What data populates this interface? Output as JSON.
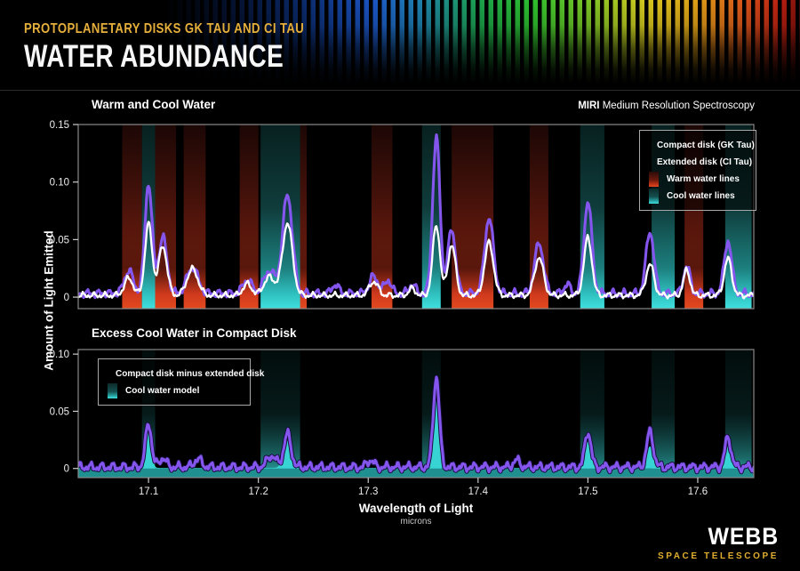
{
  "header": {
    "kicker": "PROTOPLANETARY DISKS GK TAU AND CI TAU",
    "title": "WATER ABUNDANCE"
  },
  "annotation": {
    "instrument": "MIRI",
    "instrument_rest": " Medium Resolution Spectroscopy"
  },
  "axes": {
    "y_label": "Amount of Light Emitted",
    "x_label": "Wavelength of Light",
    "x_unit": "microns"
  },
  "footer": {
    "logo": "WEBB",
    "logo_sub": "SPACE TELESCOPE"
  },
  "colors": {
    "background": "#000000",
    "accent_gold": "#e5af3c",
    "compact_purple": "#8456ee",
    "extended_white": "#ffffff",
    "warm_red": "#d63b20",
    "cool_teal": "#38d4d4",
    "axis_gray": "#8a8a8a"
  },
  "chart_data": [
    {
      "type": "line",
      "title": "Warm and Cool Water",
      "x_range": [
        17.036,
        17.651
      ],
      "y_range": [
        -0.01,
        0.15
      ],
      "x_ticks": [
        17.1,
        17.2,
        17.3,
        17.4,
        17.5,
        17.6
      ],
      "x_tick_labels": [],
      "y_ticks": [
        0,
        0.05,
        0.1,
        0.15
      ],
      "y_tick_labels": [
        "0",
        "0.05",
        "0.10",
        "0.15"
      ],
      "legend": [
        {
          "label": "Compact disk (GK Tau)",
          "swatch": "line",
          "color": "#8456ee"
        },
        {
          "label": "Extended disk (CI Tau)",
          "swatch": "line",
          "color": "#ffffff"
        },
        {
          "label": "Warm water lines",
          "swatch": "warm-band",
          "color": "#d63b20"
        },
        {
          "label": "Cool water lines",
          "swatch": "cool-band",
          "color": "#38d4d4"
        }
      ],
      "warm_bands": [
        [
          17.076,
          17.094
        ],
        [
          17.106,
          17.125
        ],
        [
          17.132,
          17.152
        ],
        [
          17.183,
          17.2
        ],
        [
          17.237,
          17.244
        ],
        [
          17.303,
          17.322
        ],
        [
          17.376,
          17.414
        ],
        [
          17.447,
          17.464
        ],
        [
          17.588,
          17.605
        ]
      ],
      "cool_bands": [
        [
          17.094,
          17.106
        ],
        [
          17.202,
          17.238
        ],
        [
          17.349,
          17.366
        ],
        [
          17.493,
          17.515
        ],
        [
          17.558,
          17.579
        ],
        [
          17.625,
          17.649
        ]
      ],
      "series": [
        {
          "name": "Compact disk (GK Tau)",
          "color": "#8456ee",
          "draw": "stroke",
          "baseline": 0.003,
          "noise_amp": 0.0022,
          "peaks": [
            [
              17.082,
              0.02,
              0.004
            ],
            [
              17.1,
              0.096,
              0.0033
            ],
            [
              17.113,
              0.049,
              0.0038
            ],
            [
              17.14,
              0.023,
              0.005
            ],
            [
              17.19,
              0.012,
              0.004
            ],
            [
              17.21,
              0.02,
              0.005
            ],
            [
              17.2265,
              0.086,
              0.0045
            ],
            [
              17.27,
              0.008,
              0.003
            ],
            [
              17.305,
              0.015,
              0.004
            ],
            [
              17.318,
              0.012,
              0.003
            ],
            [
              17.34,
              0.008,
              0.003
            ],
            [
              17.362,
              0.136,
              0.0033
            ],
            [
              17.376,
              0.056,
              0.0035
            ],
            [
              17.41,
              0.066,
              0.004
            ],
            [
              17.4555,
              0.044,
              0.004
            ],
            [
              17.481,
              0.008,
              0.003
            ],
            [
              17.5,
              0.08,
              0.0036
            ],
            [
              17.5565,
              0.054,
              0.0036
            ],
            [
              17.59,
              0.024,
              0.003
            ],
            [
              17.6275,
              0.046,
              0.0034
            ]
          ]
        },
        {
          "name": "Extended disk (CI Tau)",
          "color": "#ffffff",
          "draw": "stroke",
          "baseline": 0.0015,
          "noise_amp": 0.0016,
          "peaks": [
            [
              17.082,
              0.015,
              0.004
            ],
            [
              17.1,
              0.062,
              0.0033
            ],
            [
              17.113,
              0.043,
              0.0038
            ],
            [
              17.14,
              0.023,
              0.005
            ],
            [
              17.19,
              0.01,
              0.004
            ],
            [
              17.21,
              0.016,
              0.005
            ],
            [
              17.2265,
              0.063,
              0.0045
            ],
            [
              17.305,
              0.012,
              0.004
            ],
            [
              17.34,
              0.006,
              0.003
            ],
            [
              17.362,
              0.061,
              0.0033
            ],
            [
              17.376,
              0.044,
              0.0035
            ],
            [
              17.41,
              0.046,
              0.004
            ],
            [
              17.4555,
              0.033,
              0.004
            ],
            [
              17.5,
              0.05,
              0.0036
            ],
            [
              17.5565,
              0.027,
              0.0036
            ],
            [
              17.59,
              0.022,
              0.003
            ],
            [
              17.6275,
              0.032,
              0.0034
            ]
          ]
        }
      ]
    },
    {
      "type": "line",
      "title": "Excess Cool Water in Compact Disk",
      "x_range": [
        17.036,
        17.651
      ],
      "y_range": [
        -0.008,
        0.104
      ],
      "x_ticks": [
        17.1,
        17.2,
        17.3,
        17.4,
        17.5,
        17.6
      ],
      "x_tick_labels": [
        "17.1",
        "17.2",
        "17.3",
        "17.4",
        "17.5",
        "17.6"
      ],
      "y_ticks": [
        0,
        0.05,
        0.1
      ],
      "y_tick_labels": [
        "0",
        "0.05",
        "0.10"
      ],
      "legend": [
        {
          "label": "Compact disk minus extended disk",
          "swatch": "line",
          "color": "#8456ee"
        },
        {
          "label": "Cool water model",
          "swatch": "cool-band",
          "color": "#38d4d4"
        }
      ],
      "warm_bands": [],
      "cool_bands": [
        [
          17.094,
          17.106
        ],
        [
          17.202,
          17.238
        ],
        [
          17.349,
          17.366
        ],
        [
          17.493,
          17.515
        ],
        [
          17.558,
          17.579
        ],
        [
          17.625,
          17.649
        ]
      ],
      "series": [
        {
          "name": "Cool water model",
          "color": "#38d4d4",
          "draw": "fill",
          "baseline": 0.0005,
          "noise_amp": 0,
          "peaks": [
            [
              17.1,
              0.033,
              0.0024
            ],
            [
              17.2265,
              0.024,
              0.0035
            ],
            [
              17.362,
              0.068,
              0.0025
            ],
            [
              17.5,
              0.023,
              0.0027
            ],
            [
              17.5565,
              0.019,
              0.0029
            ],
            [
              17.6275,
              0.021,
              0.0027
            ]
          ]
        },
        {
          "name": "Compact disk minus extended disk",
          "color": "#8456ee",
          "draw": "stroke-outlined",
          "baseline": 0.0012,
          "noise_amp": 0.0024,
          "peaks": [
            [
              17.1,
              0.038,
              0.0028
            ],
            [
              17.113,
              0.008,
              0.003
            ],
            [
              17.145,
              0.007,
              0.0035
            ],
            [
              17.212,
              0.01,
              0.004
            ],
            [
              17.2265,
              0.029,
              0.0033
            ],
            [
              17.302,
              0.006,
              0.003
            ],
            [
              17.362,
              0.079,
              0.0028
            ],
            [
              17.435,
              0.006,
              0.003
            ],
            [
              17.5,
              0.031,
              0.0028
            ],
            [
              17.5565,
              0.031,
              0.003
            ],
            [
              17.6275,
              0.026,
              0.0028
            ]
          ]
        }
      ]
    }
  ]
}
